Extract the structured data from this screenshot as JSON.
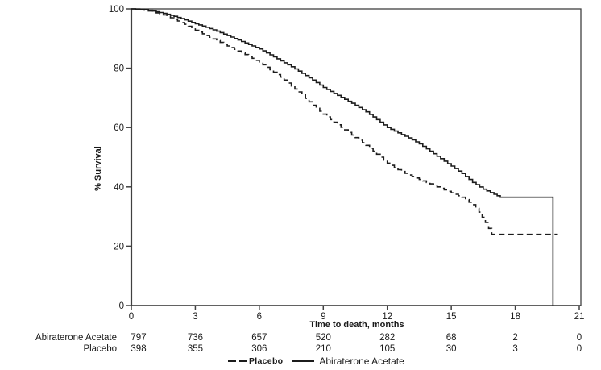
{
  "chart_data": {
    "type": "line",
    "subtype": "kaplan-meier-step-curve",
    "title": "",
    "xlabel": "Time to death, months",
    "ylabel": "% Survival",
    "xlim": [
      0,
      21
    ],
    "ylim": [
      0,
      100
    ],
    "x_ticks": [
      0,
      3,
      6,
      9,
      12,
      15,
      18,
      21
    ],
    "y_ticks": [
      0,
      20,
      40,
      60,
      80,
      100
    ],
    "grid": false,
    "legend_position": "bottom",
    "series": [
      {
        "name": "Abiraterone Acetate",
        "style": "solid",
        "points": [
          [
            0,
            100
          ],
          [
            0.6,
            99.8
          ],
          [
            1,
            99.3
          ],
          [
            1.5,
            98.5
          ],
          [
            2,
            97.5
          ],
          [
            2.5,
            96.3
          ],
          [
            3,
            95
          ],
          [
            3.5,
            93.8
          ],
          [
            4,
            92.5
          ],
          [
            4.5,
            91
          ],
          [
            5,
            89.5
          ],
          [
            5.5,
            88
          ],
          [
            6,
            86.5
          ],
          [
            6.5,
            84.5
          ],
          [
            7,
            82.5
          ],
          [
            7.5,
            80.5
          ],
          [
            8,
            78.3
          ],
          [
            8.5,
            76
          ],
          [
            9,
            73.5
          ],
          [
            9.5,
            71.5
          ],
          [
            10,
            69.5
          ],
          [
            10.5,
            67.5
          ],
          [
            11,
            65.3
          ],
          [
            11.5,
            62.7
          ],
          [
            12,
            60
          ],
          [
            12.5,
            58.2
          ],
          [
            13,
            56.5
          ],
          [
            13.5,
            54.5
          ],
          [
            14,
            52
          ],
          [
            14.5,
            49.5
          ],
          [
            15,
            47
          ],
          [
            15.5,
            44.5
          ],
          [
            16,
            41.5
          ],
          [
            16.5,
            39.2
          ],
          [
            17,
            37.5
          ],
          [
            17.3,
            36.5
          ],
          [
            19.77,
            36.5
          ],
          [
            19.77,
            0
          ]
        ]
      },
      {
        "name": "Placebo",
        "style": "dashed",
        "points": [
          [
            0,
            100
          ],
          [
            0.6,
            99.6
          ],
          [
            1,
            99
          ],
          [
            1.5,
            98
          ],
          [
            2,
            96.5
          ],
          [
            2.5,
            94.8
          ],
          [
            3,
            92.8
          ],
          [
            3.5,
            91
          ],
          [
            4,
            89.3
          ],
          [
            4.5,
            87.5
          ],
          [
            5,
            85.8
          ],
          [
            5.5,
            84
          ],
          [
            6,
            82
          ],
          [
            6.5,
            79.5
          ],
          [
            7,
            77
          ],
          [
            7.5,
            74
          ],
          [
            8,
            71
          ],
          [
            8.5,
            67.5
          ],
          [
            9,
            64.5
          ],
          [
            9.5,
            61.8
          ],
          [
            10,
            59.2
          ],
          [
            10.5,
            56.6
          ],
          [
            11,
            54
          ],
          [
            11.5,
            51
          ],
          [
            12,
            48
          ],
          [
            12.5,
            45.8
          ],
          [
            13,
            44
          ],
          [
            13.5,
            42.5
          ],
          [
            14,
            41
          ],
          [
            14.5,
            39.5
          ],
          [
            15,
            38
          ],
          [
            15.5,
            36.5
          ],
          [
            16,
            34
          ],
          [
            16.3,
            31.5
          ],
          [
            16.6,
            28
          ],
          [
            16.9,
            24
          ],
          [
            20,
            24
          ]
        ]
      }
    ]
  },
  "risk_table": {
    "rows": [
      {
        "label": "Abiraterone Acetate",
        "counts": [
          797,
          736,
          657,
          520,
          282,
          68,
          2,
          0
        ]
      },
      {
        "label": "Placebo",
        "counts": [
          398,
          355,
          306,
          210,
          105,
          30,
          3,
          0
        ]
      }
    ]
  },
  "legend": {
    "items": [
      {
        "label": "Placebo",
        "line": "dashed"
      },
      {
        "label": "Abiraterone Acetate",
        "line": "solid"
      }
    ]
  },
  "colors": {
    "line": "#1c1c1c",
    "axis": "#404040",
    "text": "#1a1a1a",
    "background": "#ffffff"
  }
}
